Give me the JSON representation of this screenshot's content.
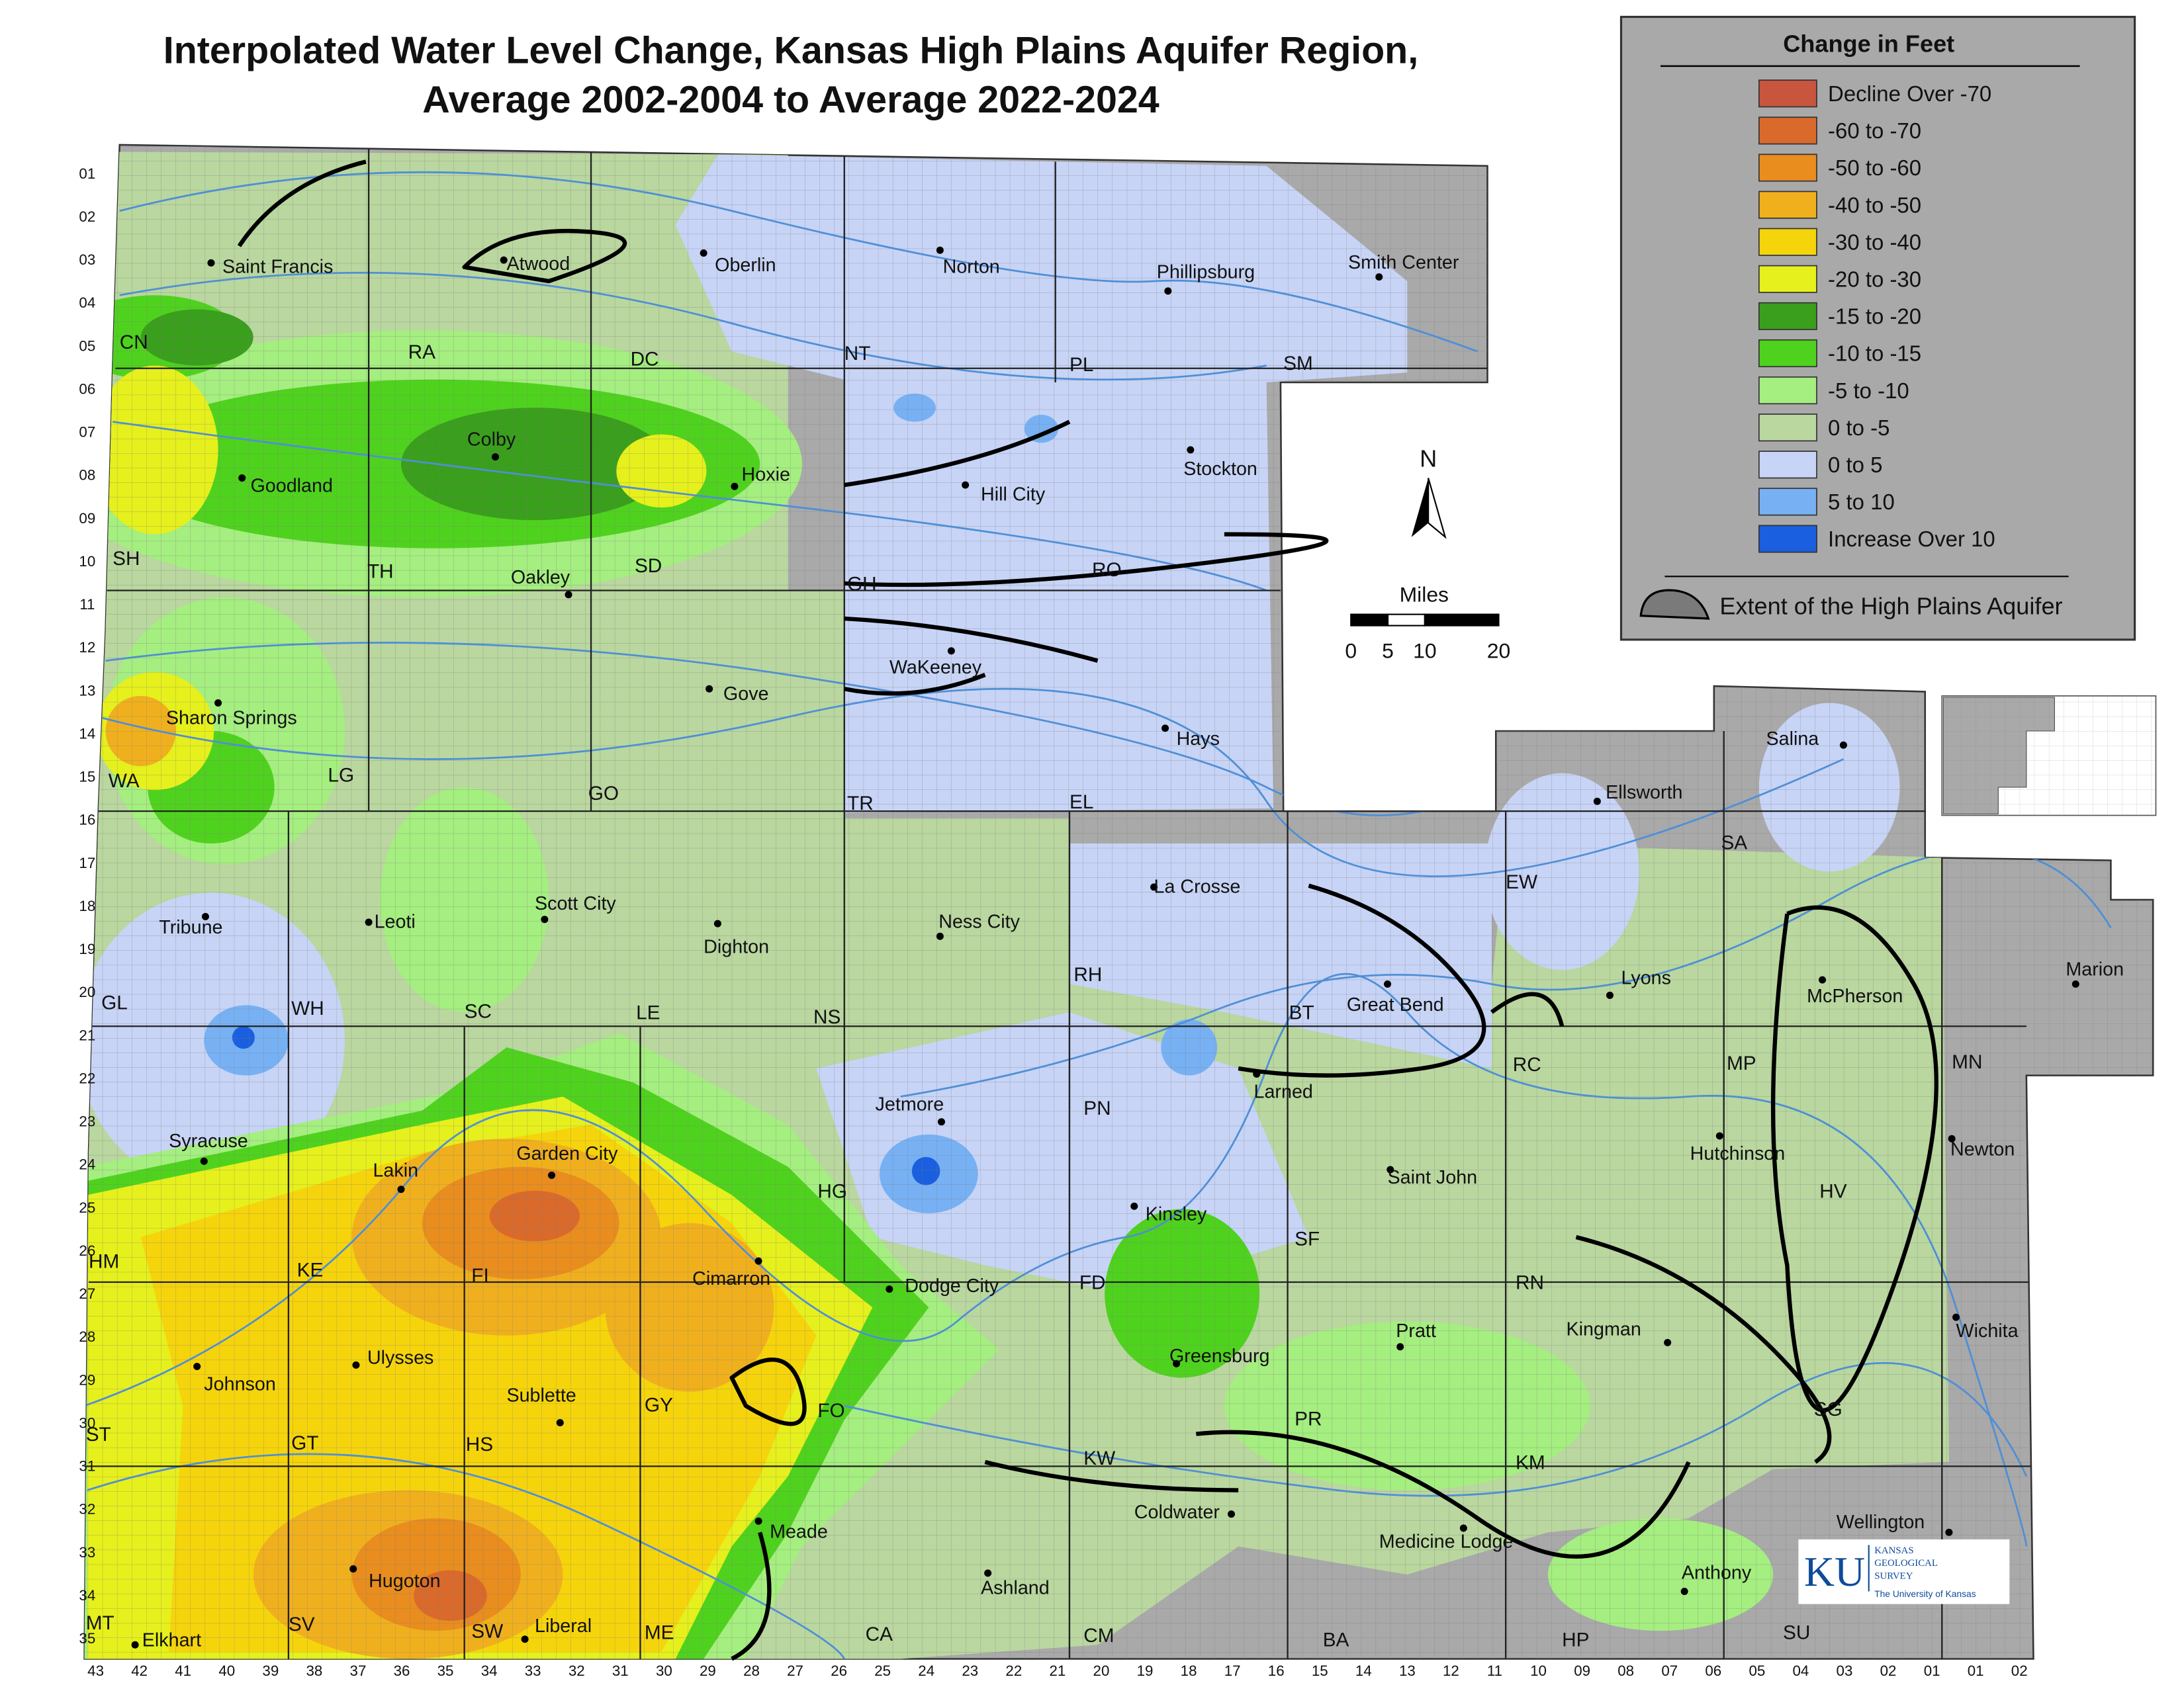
{
  "title": [
    "Interpolated Water Level Change, Kansas High Plains Aquifer Region,",
    "Average 2002-2004 to Average 2022-2024"
  ],
  "legend": {
    "title": "Change in Feet",
    "items": [
      {
        "label": "Decline Over -70",
        "color": "#c8553e"
      },
      {
        "label": "-60 to -70",
        "color": "#d96a2b"
      },
      {
        "label": "-50 to -60",
        "color": "#e88d1e"
      },
      {
        "label": "-40 to -50",
        "color": "#f0b01e"
      },
      {
        "label": "-30 to -40",
        "color": "#f6d40c"
      },
      {
        "label": "-20 to -30",
        "color": "#e6f01c"
      },
      {
        "label": "-15 to -20",
        "color": "#3a9f1c"
      },
      {
        "label": "-10 to -15",
        "color": "#4fd21e"
      },
      {
        "label": "-5 to -10",
        "color": "#a5ee80"
      },
      {
        "label": "0 to -5",
        "color": "#b9d79f"
      },
      {
        "label": "0 to 5",
        "color": "#c7d4f6"
      },
      {
        "label": "5 to 10",
        "color": "#77b1f4"
      },
      {
        "label": "Increase Over 10",
        "color": "#1a5fdf"
      }
    ],
    "extent_label": "Extent of the High Plains Aquifer"
  },
  "north_label": "N",
  "scale_bar": {
    "title": "Miles",
    "labels": [
      0,
      5,
      10,
      20
    ]
  },
  "cities": [
    "Saint Francis",
    "Atwood",
    "Oberlin",
    "Norton",
    "Phillipsburg",
    "Smith Center",
    "Goodland",
    "Colby",
    "Hoxie",
    "Hill City",
    "Stockton",
    "Oakley",
    "WaKeeney",
    "Gove",
    "Sharon Springs",
    "Hays",
    "Ellsworth",
    "Salina",
    "Tribune",
    "Leoti",
    "Scott City",
    "Dighton",
    "Ness City",
    "La Crosse",
    "Great Bend",
    "Lyons",
    "McPherson",
    "Marion",
    "Larned",
    "Jetmore",
    "Syracuse",
    "Lakin",
    "Garden City",
    "Saint John",
    "Hutchinson",
    "Newton",
    "Kinsley",
    "Cimarron",
    "Dodge City",
    "Pratt",
    "Kingman",
    "Wichita",
    "Greensburg",
    "Ulysses",
    "Johnson",
    "Sublette",
    "Meade",
    "Coldwater",
    "Medicine Lodge",
    "Wellington",
    "Anthony",
    "Ashland",
    "Hugoton",
    "Liberal",
    "Elkhart"
  ],
  "counties": [
    "CN",
    "RA",
    "DC",
    "NT",
    "PL",
    "SM",
    "SH",
    "TH",
    "SD",
    "GH",
    "RO",
    "WA",
    "LG",
    "GO",
    "TR",
    "EL",
    "SA",
    "EW",
    "RH",
    "GL",
    "WH",
    "SC",
    "LE",
    "NS",
    "BT",
    "RC",
    "MP",
    "MN",
    "PN",
    "HG",
    "HV",
    "HM",
    "KE",
    "FI",
    "FD",
    "SF",
    "RN",
    "ST",
    "GT",
    "HS",
    "GY",
    "FO",
    "KW",
    "PR",
    "KM",
    "SG",
    "MT",
    "SV",
    "SW",
    "ME",
    "CA",
    "CM",
    "BA",
    "HP",
    "SU"
  ],
  "townships": [
    "01",
    "02",
    "03",
    "04",
    "05",
    "06",
    "07",
    "08",
    "09",
    "10",
    "11",
    "12",
    "13",
    "14",
    "15",
    "16",
    "17",
    "18",
    "19",
    "20",
    "21",
    "22",
    "23",
    "24",
    "25",
    "26",
    "27",
    "28",
    "29",
    "30",
    "31",
    "32",
    "33",
    "34",
    "35"
  ],
  "ranges": [
    "43",
    "42",
    "41",
    "40",
    "39",
    "38",
    "37",
    "36",
    "35",
    "34",
    "33",
    "32",
    "31",
    "30",
    "29",
    "28",
    "27",
    "26",
    "25",
    "24",
    "23",
    "22",
    "21",
    "20",
    "19",
    "18",
    "17",
    "16",
    "15",
    "14",
    "13",
    "12",
    "11",
    "10",
    "09",
    "08",
    "07",
    "06",
    "05",
    "04",
    "03",
    "02",
    "01",
    "01",
    "02"
  ],
  "logo": {
    "mark": "KU",
    "lines": [
      "KANSAS",
      "GEOLOGICAL",
      "SURVEY"
    ],
    "subtitle": "The University of Kansas"
  }
}
